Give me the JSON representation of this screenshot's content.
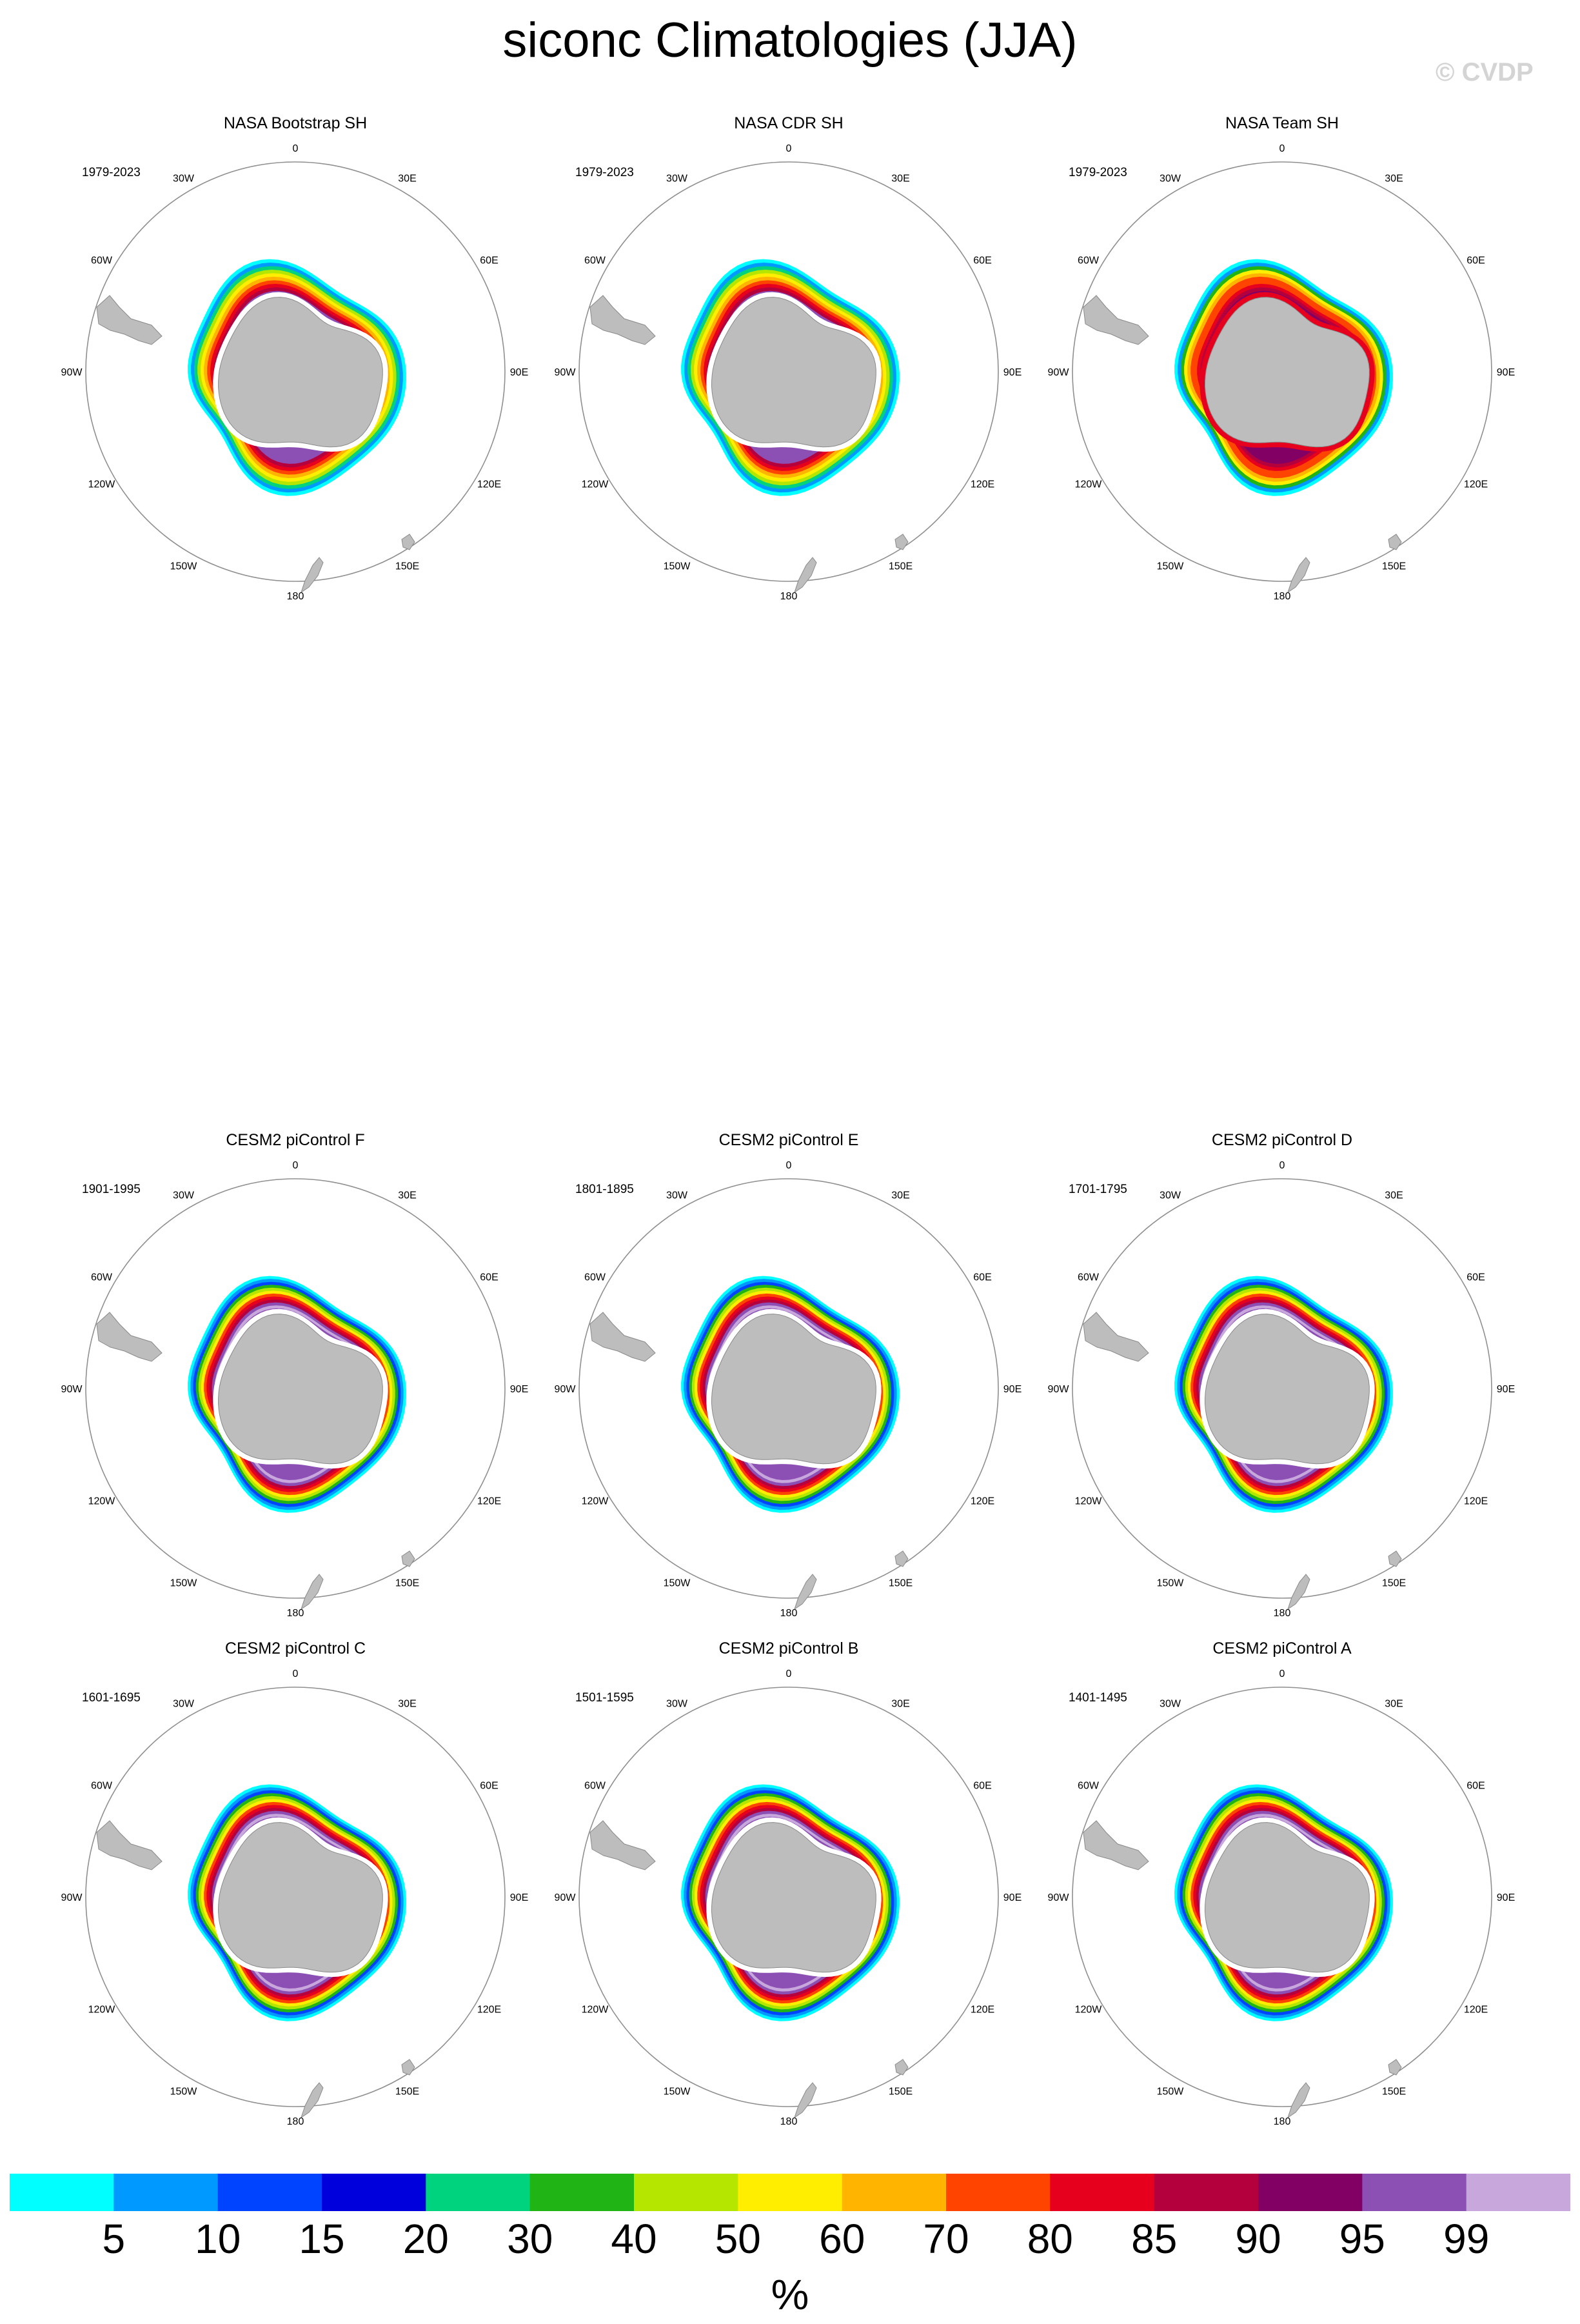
{
  "title": "siconc Climatologies (JJA)",
  "watermark": "© CVDP",
  "longitude_labels": [
    "0",
    "30E",
    "60E",
    "90E",
    "120E",
    "150E",
    "180",
    "150W",
    "120W",
    "90W",
    "60W",
    "30W"
  ],
  "panels": [
    {
      "title": "NASA Bootstrap SH",
      "period": "1979-2023",
      "style": "obs-bootstrap"
    },
    {
      "title": "NASA CDR SH",
      "period": "1979-2023",
      "style": "obs-cdr"
    },
    {
      "title": "NASA Team SH",
      "period": "1979-2023",
      "style": "obs-team"
    },
    {
      "title": "CESM2 piControl F",
      "period": "1901-1995",
      "style": "model"
    },
    {
      "title": "CESM2 piControl E",
      "period": "1801-1895",
      "style": "model"
    },
    {
      "title": "CESM2 piControl D",
      "period": "1701-1795",
      "style": "model"
    },
    {
      "title": "CESM2 piControl C",
      "period": "1601-1695",
      "style": "model"
    },
    {
      "title": "CESM2 piControl B",
      "period": "1501-1595",
      "style": "model"
    },
    {
      "title": "CESM2 piControl A",
      "period": "1401-1495",
      "style": "model"
    }
  ],
  "colorbar": {
    "unit": "%",
    "labels": [
      "5",
      "10",
      "15",
      "20",
      "30",
      "40",
      "50",
      "60",
      "70",
      "80",
      "85",
      "90",
      "95",
      "99"
    ],
    "colors": [
      "#00ffff",
      "#0099ff",
      "#0044ff",
      "#0000dd",
      "#00d37d",
      "#20b414",
      "#b4e600",
      "#ffee00",
      "#ffb400",
      "#ff4400",
      "#e6001e",
      "#b4003c",
      "#820064",
      "#8c4fb4",
      "#c8a8dc"
    ]
  },
  "map_colors": {
    "land": "#bdbdbd",
    "ring": "#8f8f8f",
    "land_edge": "#8a8a8a"
  }
}
